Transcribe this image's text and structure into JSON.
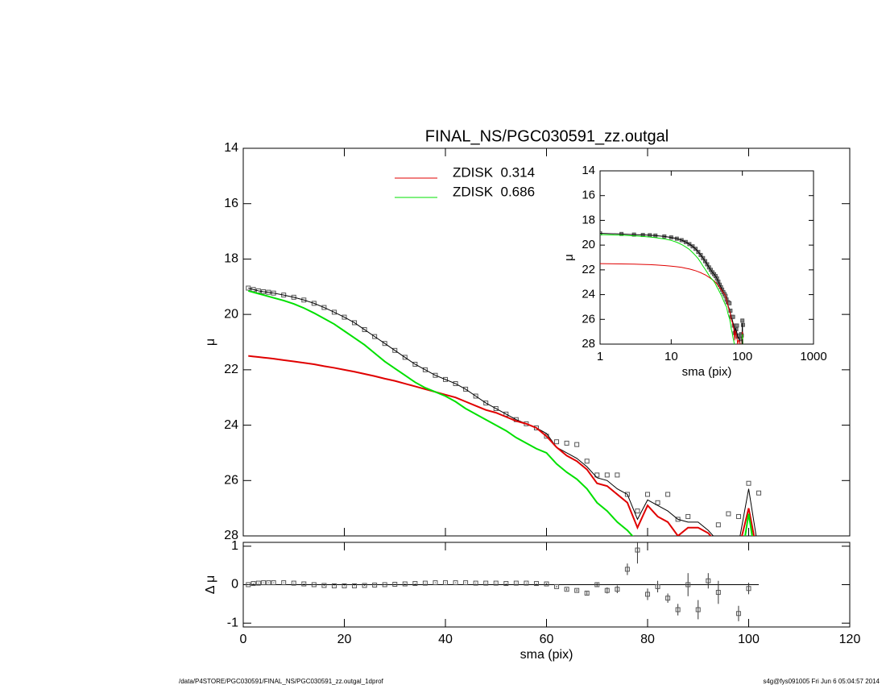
{
  "chart_data": [
    {
      "type": "line",
      "title": "FINAL_NS/PGC030591_zz.outgal",
      "ylabel": "μ",
      "xlim": [
        0,
        120
      ],
      "xticks": [
        0,
        20,
        40,
        60,
        80,
        100,
        120
      ],
      "ylim": [
        28,
        14
      ],
      "yticks": [
        14,
        16,
        18,
        20,
        22,
        24,
        26,
        28
      ],
      "legend": "top",
      "x": [
        1,
        2,
        3,
        4,
        5,
        6,
        8,
        10,
        12,
        14,
        16,
        18,
        20,
        22,
        24,
        26,
        28,
        30,
        32,
        34,
        36,
        38,
        40,
        42,
        44,
        46,
        48,
        50,
        52,
        54,
        56,
        58,
        60,
        62,
        64,
        66,
        68,
        70,
        72,
        74,
        76,
        78,
        80,
        82,
        84,
        86,
        88,
        90,
        92,
        94,
        96,
        98,
        100,
        102
      ],
      "series": [
        {
          "marker": "square",
          "color": "#555555",
          "values": [
            19.05,
            19.1,
            19.15,
            19.18,
            19.2,
            19.23,
            19.3,
            19.38,
            19.48,
            19.6,
            19.75,
            19.92,
            20.1,
            20.3,
            20.55,
            20.8,
            21.05,
            21.3,
            21.55,
            21.8,
            22.0,
            22.2,
            22.35,
            22.5,
            22.7,
            22.95,
            23.2,
            23.4,
            23.6,
            23.8,
            23.95,
            24.1,
            24.4,
            24.6,
            24.65,
            24.7,
            25.3,
            25.8,
            25.8,
            25.8,
            26.5,
            27.1,
            26.5,
            26.8,
            26.5,
            27.4,
            27.3,
            28.3,
            28.4,
            27.6,
            27.2,
            27.3,
            26.1,
            26.45
          ]
        },
        {
          "color": "#000000",
          "values": [
            19.05,
            19.1,
            19.15,
            19.18,
            19.2,
            19.23,
            19.3,
            19.38,
            19.48,
            19.6,
            19.75,
            19.92,
            20.1,
            20.3,
            20.55,
            20.8,
            21.05,
            21.3,
            21.55,
            21.8,
            22.0,
            22.2,
            22.35,
            22.5,
            22.7,
            22.95,
            23.2,
            23.4,
            23.6,
            23.8,
            23.95,
            24.1,
            24.3,
            24.8,
            25.0,
            25.2,
            25.5,
            25.9,
            26.0,
            26.3,
            26.5,
            27.4,
            26.7,
            26.9,
            27.1,
            27.4,
            27.5,
            27.5,
            27.8,
            28.2,
            28.6,
            28.3,
            26.3,
            28.6
          ]
        },
        {
          "name": "ZDISK  0.314",
          "color": "#e00000",
          "values": [
            21.5,
            21.52,
            21.54,
            21.56,
            21.58,
            21.6,
            21.65,
            21.7,
            21.75,
            21.8,
            21.87,
            21.93,
            22.0,
            22.07,
            22.15,
            22.23,
            22.32,
            22.4,
            22.5,
            22.6,
            22.7,
            22.8,
            22.9,
            23.0,
            23.15,
            23.3,
            23.45,
            23.55,
            23.7,
            23.85,
            23.95,
            24.1,
            24.4,
            24.8,
            25.1,
            25.3,
            25.6,
            26.1,
            26.2,
            26.5,
            26.8,
            27.7,
            26.9,
            27.3,
            27.5,
            28.0,
            27.7,
            27.7,
            27.9,
            28.3,
            28.9,
            28.5,
            27.0,
            28.9
          ]
        },
        {
          "name": "ZDISK  0.686",
          "color": "#00e000",
          "values": [
            19.15,
            19.2,
            19.25,
            19.3,
            19.35,
            19.4,
            19.5,
            19.62,
            19.77,
            19.95,
            20.15,
            20.35,
            20.6,
            20.85,
            21.1,
            21.4,
            21.7,
            21.95,
            22.2,
            22.45,
            22.65,
            22.8,
            22.95,
            23.15,
            23.4,
            23.6,
            23.8,
            24.0,
            24.2,
            24.45,
            24.65,
            24.85,
            25.0,
            25.4,
            25.7,
            25.95,
            26.3,
            26.8,
            27.1,
            27.5,
            27.8,
            28.2,
            null,
            null,
            null,
            null,
            null,
            null,
            null,
            null,
            null,
            29.5,
            27.2,
            29.5
          ]
        }
      ]
    },
    {
      "type": "scatter",
      "xlabel": "sma (pix)",
      "ylabel": "Δ μ",
      "xlim": [
        0,
        120
      ],
      "xticks": [
        0,
        20,
        40,
        60,
        80,
        100,
        120
      ],
      "ylim": [
        -1.1,
        1.1
      ],
      "yticks": [
        -1,
        0,
        1
      ],
      "color": "#555555",
      "values": [
        0,
        0.03,
        0.04,
        0.05,
        0.05,
        0.05,
        0.05,
        0.04,
        0.02,
        0,
        -0.02,
        -0.03,
        -0.03,
        -0.03,
        -0.02,
        -0.01,
        0,
        0.01,
        0.02,
        0.03,
        0.04,
        0.05,
        0.05,
        0.05,
        0.05,
        0.04,
        0.04,
        0.04,
        0.03,
        0.04,
        0.04,
        0.03,
        0.02,
        -0.05,
        -0.12,
        -0.15,
        -0.22,
        0,
        -0.15,
        -0.12,
        0.4,
        0.9,
        -0.25,
        -0.05,
        -0.35,
        -0.65,
        0,
        -0.65,
        0.1,
        -0.2,
        null,
        -0.75,
        -0.1,
        null
      ],
      "errors": [
        0.01,
        0.01,
        0.01,
        0.01,
        0.01,
        0.01,
        0.01,
        0.01,
        0.01,
        0.01,
        0.01,
        0.01,
        0.01,
        0.01,
        0.01,
        0.01,
        0.01,
        0.01,
        0.01,
        0.01,
        0.01,
        0.01,
        0.01,
        0.01,
        0.01,
        0.01,
        0.01,
        0.01,
        0.01,
        0.01,
        0.01,
        0.01,
        0.02,
        0.02,
        0.03,
        0.03,
        0.04,
        0.05,
        0.08,
        0.1,
        0.15,
        0.35,
        0.15,
        0.15,
        0.12,
        0.15,
        0.3,
        0.25,
        0.2,
        0.3,
        null,
        0.2,
        0.15,
        null
      ]
    },
    {
      "type": "line",
      "xlabel": "sma (pix)",
      "ylabel": "μ",
      "xscale": "log",
      "xlim": [
        1,
        1000
      ],
      "xticks": [
        1,
        10,
        100,
        1000
      ],
      "ylim": [
        28,
        14
      ],
      "yticks": [
        14,
        16,
        18,
        20,
        22,
        24,
        26,
        28
      ]
    }
  ],
  "footer": {
    "path": "/data/P4STORE/PGC030591/FINAL_NS/PGC030591_zz.outgal_1dprof",
    "stamp": "s4g@fys091005  Fri Jun  6 05:04:57 2014"
  }
}
